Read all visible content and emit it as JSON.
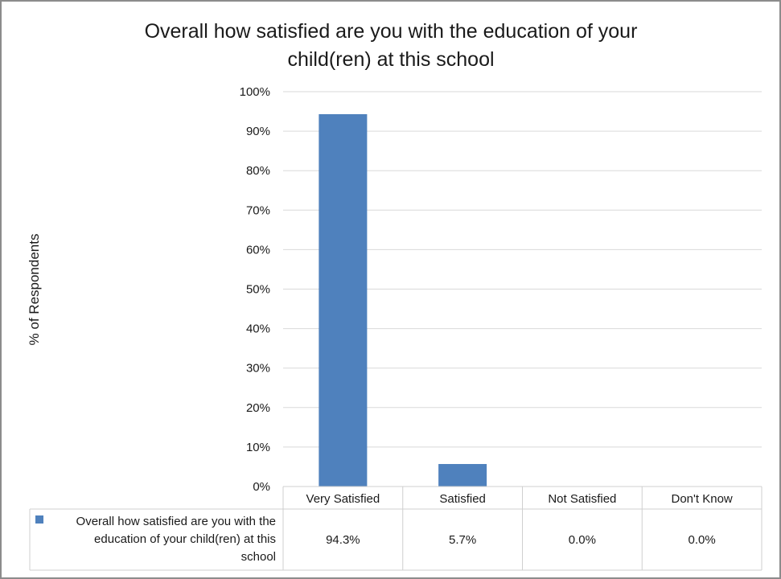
{
  "chart_data": {
    "type": "bar",
    "title_lines": [
      "Overall how satisfied are you with the education of your",
      "child(ren) at this school"
    ],
    "ylabel": "% of Respondents",
    "xlabel": "",
    "ylim": [
      0,
      100
    ],
    "yticks": [
      "0%",
      "10%",
      "20%",
      "30%",
      "40%",
      "50%",
      "60%",
      "70%",
      "80%",
      "90%",
      "100%"
    ],
    "grid": true,
    "categories": [
      "Very Satisfied",
      "Satisfied",
      "Not Satisfied",
      "Don't Know"
    ],
    "series": [
      {
        "name_lines": [
          "Overall how satisfied are you with the",
          "education of your child(ren) at this",
          "school"
        ],
        "values": [
          94.3,
          5.7,
          0.0,
          0.0
        ],
        "value_labels": [
          "94.3%",
          "5.7%",
          "0.0%",
          "0.0%"
        ],
        "color": "#4f81bd"
      }
    ],
    "data_table": true
  }
}
